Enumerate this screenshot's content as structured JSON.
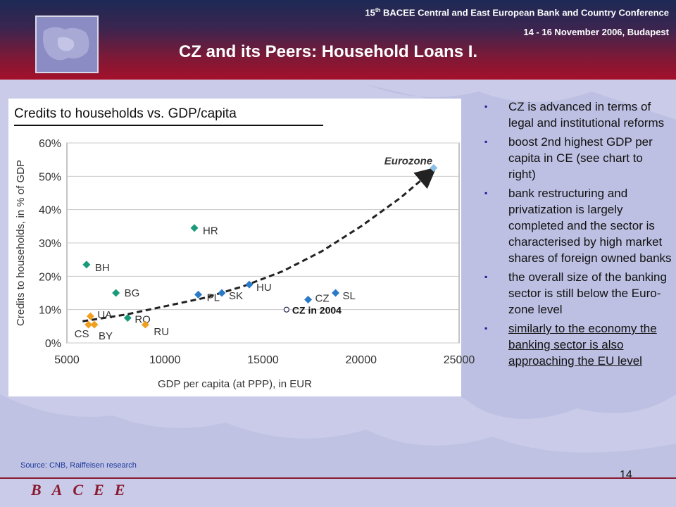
{
  "header": {
    "conference_prefix": "15",
    "conference_sup": "th",
    "conference_rest": " BACEE Central and East European Bank and Country Conference",
    "date": "14 - 16 November 2006, Budapest",
    "title": "CZ and its Peers: Household Loans I."
  },
  "chart_panel": {
    "title": "Credits to households  vs. GDP/capita"
  },
  "chart_data": {
    "type": "scatter",
    "title": "Credits to households  vs. GDP/capita",
    "xlabel": "GDP per capita (at PPP), in EUR",
    "ylabel": "Credits to households, in % of GDP",
    "xlim": [
      5000,
      25000
    ],
    "ylim": [
      0,
      60
    ],
    "xticks": [
      5000,
      10000,
      15000,
      20000,
      25000
    ],
    "xtick_labels": [
      "5000",
      "10000",
      "15000",
      "20000",
      "25000"
    ],
    "yticks": [
      0,
      10,
      20,
      30,
      40,
      50,
      60
    ],
    "ytick_labels": [
      "0%",
      "10%",
      "20%",
      "30%",
      "40%",
      "50%",
      "60%"
    ],
    "points": [
      {
        "label": "HR",
        "x": 11500,
        "y": 34.5,
        "color": "#1a9a7a"
      },
      {
        "label": "BH",
        "x": 6000,
        "y": 23.5,
        "color": "#1a9a7a"
      },
      {
        "label": "BG",
        "x": 7500,
        "y": 15,
        "color": "#1a9a7a"
      },
      {
        "label": "RO",
        "x": 8100,
        "y": 7.5,
        "color": "#1a9a7a"
      },
      {
        "label": "UA",
        "x": 6200,
        "y": 8,
        "color": "#f0a020"
      },
      {
        "label": "CS",
        "x": 6100,
        "y": 5.5,
        "color": "#f0a020"
      },
      {
        "label": "BY",
        "x": 6400,
        "y": 5.5,
        "color": "#f0a020"
      },
      {
        "label": "RU",
        "x": 9000,
        "y": 5.5,
        "color": "#f0a020"
      },
      {
        "label": "PL",
        "x": 11700,
        "y": 14.5,
        "color": "#2a7ac8"
      },
      {
        "label": "SK",
        "x": 12900,
        "y": 15,
        "color": "#2a7ac8"
      },
      {
        "label": "HU",
        "x": 14300,
        "y": 17.5,
        "color": "#2a7ac8"
      },
      {
        "label": "CZ",
        "x": 17300,
        "y": 13,
        "color": "#2a7ac8"
      },
      {
        "label": "SL",
        "x": 18700,
        "y": 15,
        "color": "#2a7ac8"
      },
      {
        "label": "Eurozone",
        "x": 23700,
        "y": 52.5,
        "color": "#8ac0e8"
      }
    ],
    "highlight": {
      "label": "CZ in 2004",
      "x": 16200,
      "y": 10
    },
    "trend": {
      "style": "dashed-arrow",
      "points": [
        [
          5800,
          6.5
        ],
        [
          8000,
          8.5
        ],
        [
          10000,
          11
        ],
        [
          12000,
          13.5
        ],
        [
          14000,
          17
        ],
        [
          16000,
          21.5
        ],
        [
          18000,
          27.5
        ],
        [
          20000,
          35
        ],
        [
          22000,
          43.5
        ],
        [
          23600,
          51.5
        ]
      ]
    }
  },
  "bullets": [
    {
      "text": "CZ is advanced in terms of legal and institutional reforms",
      "underlined": false
    },
    {
      "text": "boost 2nd highest GDP per capita in CE (see chart to right)",
      "underlined": false
    },
    {
      "text": "bank restructuring and privatization is largely completed and the sector is characterised by high market shares of foreign owned banks",
      "underlined": false
    },
    {
      "text": "the overall size of the banking sector is still below the Euro-zone level",
      "underlined": false
    },
    {
      "text": "similarly to the economy the banking sector is also approaching the EU level",
      "underlined": true
    }
  ],
  "bullet_marker": "▪",
  "source": "Source: CNB, Raiffeisen research",
  "page_number": "14",
  "footer_logo": "BACEE",
  "colors": {
    "header_top": "#1c2a55",
    "header_bottom": "#a4102a",
    "background": "#c9cbe8",
    "accent": "#8a1a30"
  }
}
